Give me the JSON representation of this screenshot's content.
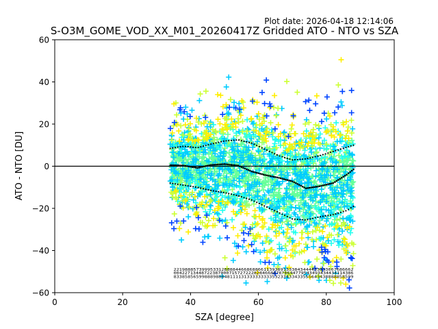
{
  "chart_data": {
    "type": "scatter",
    "plot_date": "Plot date: 2026-04-18 12:14:06",
    "title": "S-O3M_GOME_VOD_XX_M01_20260417Z Gridded ATO - NTO vs SZA",
    "xlabel": "SZA [degree]",
    "ylabel": "ATO - NTO [DU]",
    "xlim": [
      0,
      100
    ],
    "ylim": [
      -60,
      60
    ],
    "x_ticks": [
      0,
      20,
      40,
      60,
      80,
      100
    ],
    "x_tick_labels": [
      "0",
      "20",
      "40",
      "60",
      "80",
      "100"
    ],
    "y_ticks": [
      -60,
      -40,
      -20,
      0,
      20,
      40,
      60
    ],
    "y_tick_labels": [
      "−60",
      "−40",
      "−20",
      "0",
      "20",
      "40",
      "60"
    ],
    "reference_line_y": 0,
    "scatter_x_range": [
      34,
      88
    ],
    "scatter_colors": [
      "#66ff99",
      "#00ccff",
      "#ccff33",
      "#ffee00",
      "#22ffee",
      "#0044ff",
      "#99ff66"
    ],
    "mean_curve": {
      "x": [
        34,
        38,
        42,
        46,
        50,
        54,
        58,
        62,
        66,
        70,
        74,
        78,
        82,
        86,
        88
      ],
      "y": [
        0.5,
        0.3,
        -0.8,
        0.6,
        1.0,
        0.3,
        -2.5,
        -4.2,
        -5.5,
        -7.2,
        -10.5,
        -9.5,
        -8.0,
        -4.0,
        -1.5
      ]
    },
    "upper_sigma_curve": {
      "x": [
        34,
        38,
        42,
        46,
        50,
        54,
        58,
        62,
        66,
        70,
        74,
        78,
        82,
        86,
        88
      ],
      "y": [
        8.5,
        9.5,
        8.8,
        10.5,
        12.0,
        12.5,
        11.0,
        8.0,
        5.0,
        3.0,
        3.5,
        5.0,
        7.0,
        9.0,
        10.0
      ]
    },
    "lower_sigma_curve": {
      "x": [
        34,
        38,
        42,
        46,
        50,
        54,
        58,
        62,
        66,
        70,
        74,
        78,
        82,
        86,
        88
      ],
      "y": [
        -8.0,
        -9.0,
        -10.0,
        -11.5,
        -12.5,
        -14.0,
        -16.0,
        -19.0,
        -22.0,
        -25.0,
        -25.5,
        -24.0,
        -23.0,
        -21.0,
        -19.0
      ]
    },
    "count_rows": [
      "2219888573999533128888446686886611393891333843444433333667686662",
      "00422713448722387000715727222828466887878644779543493434434114386",
      "8338585659988898884811113133333333353233433433555643438888858599"
    ],
    "count_rows_y": [
      -49.6,
      -51.3,
      -53.0
    ],
    "count_rows_x_range": [
      35,
      88
    ]
  }
}
